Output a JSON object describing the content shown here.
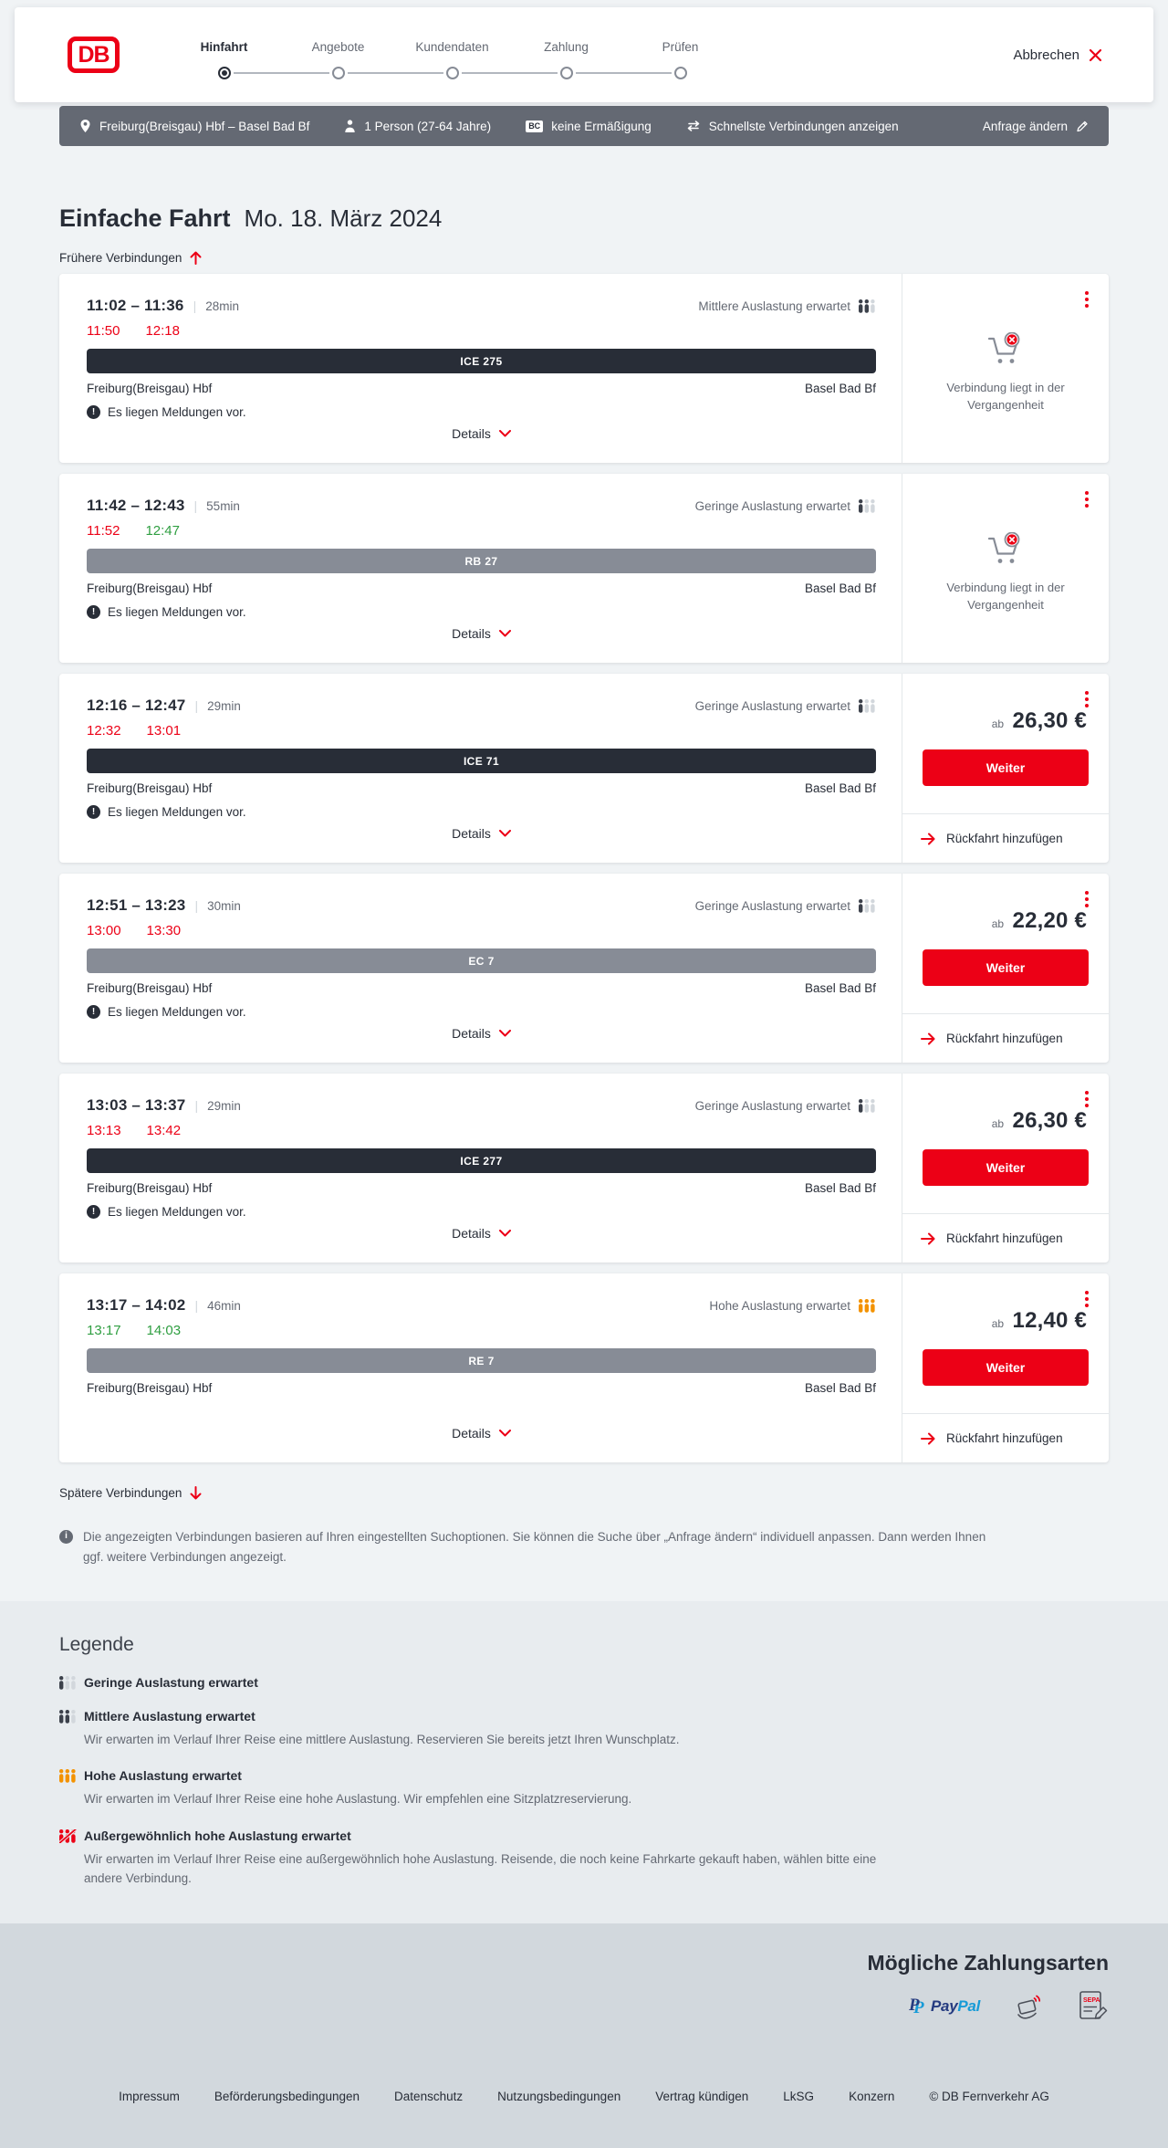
{
  "colors": {
    "accent": "#ec0016",
    "dark": "#282d37",
    "person_dark": "#3c414b",
    "light_gray": "#d2d7dc",
    "orange": "#f39200",
    "green": "#2f9e41"
  },
  "header": {
    "logo_text": "DB",
    "steps": [
      {
        "label": "Hinfahrt",
        "active": true
      },
      {
        "label": "Angebote",
        "active": false
      },
      {
        "label": "Kundendaten",
        "active": false
      },
      {
        "label": "Zahlung",
        "active": false
      },
      {
        "label": "Prüfen",
        "active": false
      }
    ],
    "cancel_label": "Abbrechen"
  },
  "search_summary": {
    "route": "Freiburg(Breisgau) Hbf – Basel Bad Bf",
    "passengers": "1 Person (27-64 Jahre)",
    "bahncard_badge": "BC",
    "discount": "keine Ermäßigung",
    "sort_option": "Schnellste Verbindungen anzeigen",
    "modify_label": "Anfrage ändern"
  },
  "results": {
    "trip_type": "Einfache Fahrt",
    "date": "Mo. 18. März 2024",
    "earlier_label": "Frühere Verbindungen",
    "later_label": "Spätere Verbindungen",
    "info_note": "Die angezeigten Verbindungen basieren auf Ihren eingestellten Suchoptionen. Sie können die Suche über „Anfrage ändern“ individuell anpassen. Dann werden Ihnen ggf. weitere Verbindungen angezeigt."
  },
  "labels": {
    "details": "Details",
    "messages": "Es liegen Meldungen vor.",
    "price_prefix": "ab",
    "continue": "Weiter",
    "add_return": "Rückfahrt hinzufügen",
    "past_connection": "Verbindung liegt in der Vergangenheit"
  },
  "journeys": [
    {
      "times": "11:02 – 11:36",
      "duration": "28min",
      "rt_departure": "11:50",
      "rt_departure_status": "delayed",
      "rt_arrival": "12:18",
      "rt_arrival_status": "delayed",
      "occupancy": "Mittlere Auslastung erwartet",
      "occupancy_level": 2,
      "train": "ICE 275",
      "train_style": "dark",
      "from": "Freiburg(Breisgau) Hbf",
      "to": "Basel Bad Bf",
      "has_messages": true,
      "side": {
        "type": "past"
      }
    },
    {
      "times": "11:42 – 12:43",
      "duration": "55min",
      "rt_departure": "11:52",
      "rt_departure_status": "delayed",
      "rt_arrival": "12:47",
      "rt_arrival_status": "on-time",
      "occupancy": "Geringe Auslastung erwartet",
      "occupancy_level": 1,
      "train": "RB 27",
      "train_style": "gray",
      "from": "Freiburg(Breisgau) Hbf",
      "to": "Basel Bad Bf",
      "has_messages": true,
      "side": {
        "type": "past"
      }
    },
    {
      "times": "12:16 – 12:47",
      "duration": "29min",
      "rt_departure": "12:32",
      "rt_departure_status": "delayed",
      "rt_arrival": "13:01",
      "rt_arrival_status": "delayed",
      "occupancy": "Geringe Auslastung erwartet",
      "occupancy_level": 1,
      "train": "ICE 71",
      "train_style": "dark",
      "from": "Freiburg(Breisgau) Hbf",
      "to": "Basel Bad Bf",
      "has_messages": true,
      "side": {
        "type": "price",
        "price": "26,30 €"
      }
    },
    {
      "times": "12:51 – 13:23",
      "duration": "30min",
      "rt_departure": "13:00",
      "rt_departure_status": "delayed",
      "rt_arrival": "13:30",
      "rt_arrival_status": "delayed",
      "occupancy": "Geringe Auslastung erwartet",
      "occupancy_level": 1,
      "train": "EC 7",
      "train_style": "gray",
      "from": "Freiburg(Breisgau) Hbf",
      "to": "Basel Bad Bf",
      "has_messages": true,
      "side": {
        "type": "price",
        "price": "22,20 €"
      }
    },
    {
      "times": "13:03 – 13:37",
      "duration": "29min",
      "rt_departure": "13:13",
      "rt_departure_status": "delayed",
      "rt_arrival": "13:42",
      "rt_arrival_status": "delayed",
      "occupancy": "Geringe Auslastung erwartet",
      "occupancy_level": 1,
      "train": "ICE 277",
      "train_style": "dark",
      "from": "Freiburg(Breisgau) Hbf",
      "to": "Basel Bad Bf",
      "has_messages": true,
      "side": {
        "type": "price",
        "price": "26,30 €"
      }
    },
    {
      "times": "13:17 – 14:02",
      "duration": "46min",
      "rt_departure": "13:17",
      "rt_departure_status": "on-time",
      "rt_arrival": "14:03",
      "rt_arrival_status": "on-time",
      "occupancy": "Hohe Auslastung erwartet",
      "occupancy_level": 3,
      "train": "RE 7",
      "train_style": "gray",
      "from": "Freiburg(Breisgau) Hbf",
      "to": "Basel Bad Bf",
      "has_messages": false,
      "side": {
        "type": "price",
        "price": "12,40 €"
      }
    }
  ],
  "legend": {
    "title": "Legende",
    "items": [
      {
        "icon": "occupancy-low-icon",
        "level": 1,
        "label": "Geringe Auslastung erwartet",
        "description": ""
      },
      {
        "icon": "occupancy-medium-icon",
        "level": 2,
        "label": "Mittlere Auslastung erwartet",
        "description": "Wir erwarten im Verlauf Ihrer Reise eine mittlere Auslastung. Reservieren Sie bereits jetzt Ihren Wunschplatz."
      },
      {
        "icon": "occupancy-high-icon",
        "level": 3,
        "label": "Hohe Auslastung erwartet",
        "description": "Wir erwarten im Verlauf Ihrer Reise eine hohe Auslastung. Wir empfehlen eine Sitzplatzreservierung."
      },
      {
        "icon": "occupancy-exceptional-icon",
        "level": 4,
        "label": "Außergewöhnlich hohe Auslastung erwartet",
        "description": "Wir erwarten im Verlauf Ihrer Reise eine außergewöhnlich hohe Auslastung. Reisende, die noch keine Fahrkarte gekauft haben, wählen bitte eine andere Verbindung."
      }
    ]
  },
  "payment": {
    "title": "Mögliche Zahlungsarten",
    "methods": [
      {
        "icon": "paypal-icon",
        "label": "PayPal"
      },
      {
        "icon": "contactless-payment-icon",
        "label": ""
      },
      {
        "icon": "sepa-icon",
        "label": "SEPA"
      }
    ]
  },
  "footer": {
    "links": [
      "Impressum",
      "Beförderungsbedingungen",
      "Datenschutz",
      "Nutzungsbedingungen",
      "Vertrag kündigen",
      "LkSG",
      "Konzern"
    ],
    "copyright": "© DB Fernverkehr AG"
  }
}
